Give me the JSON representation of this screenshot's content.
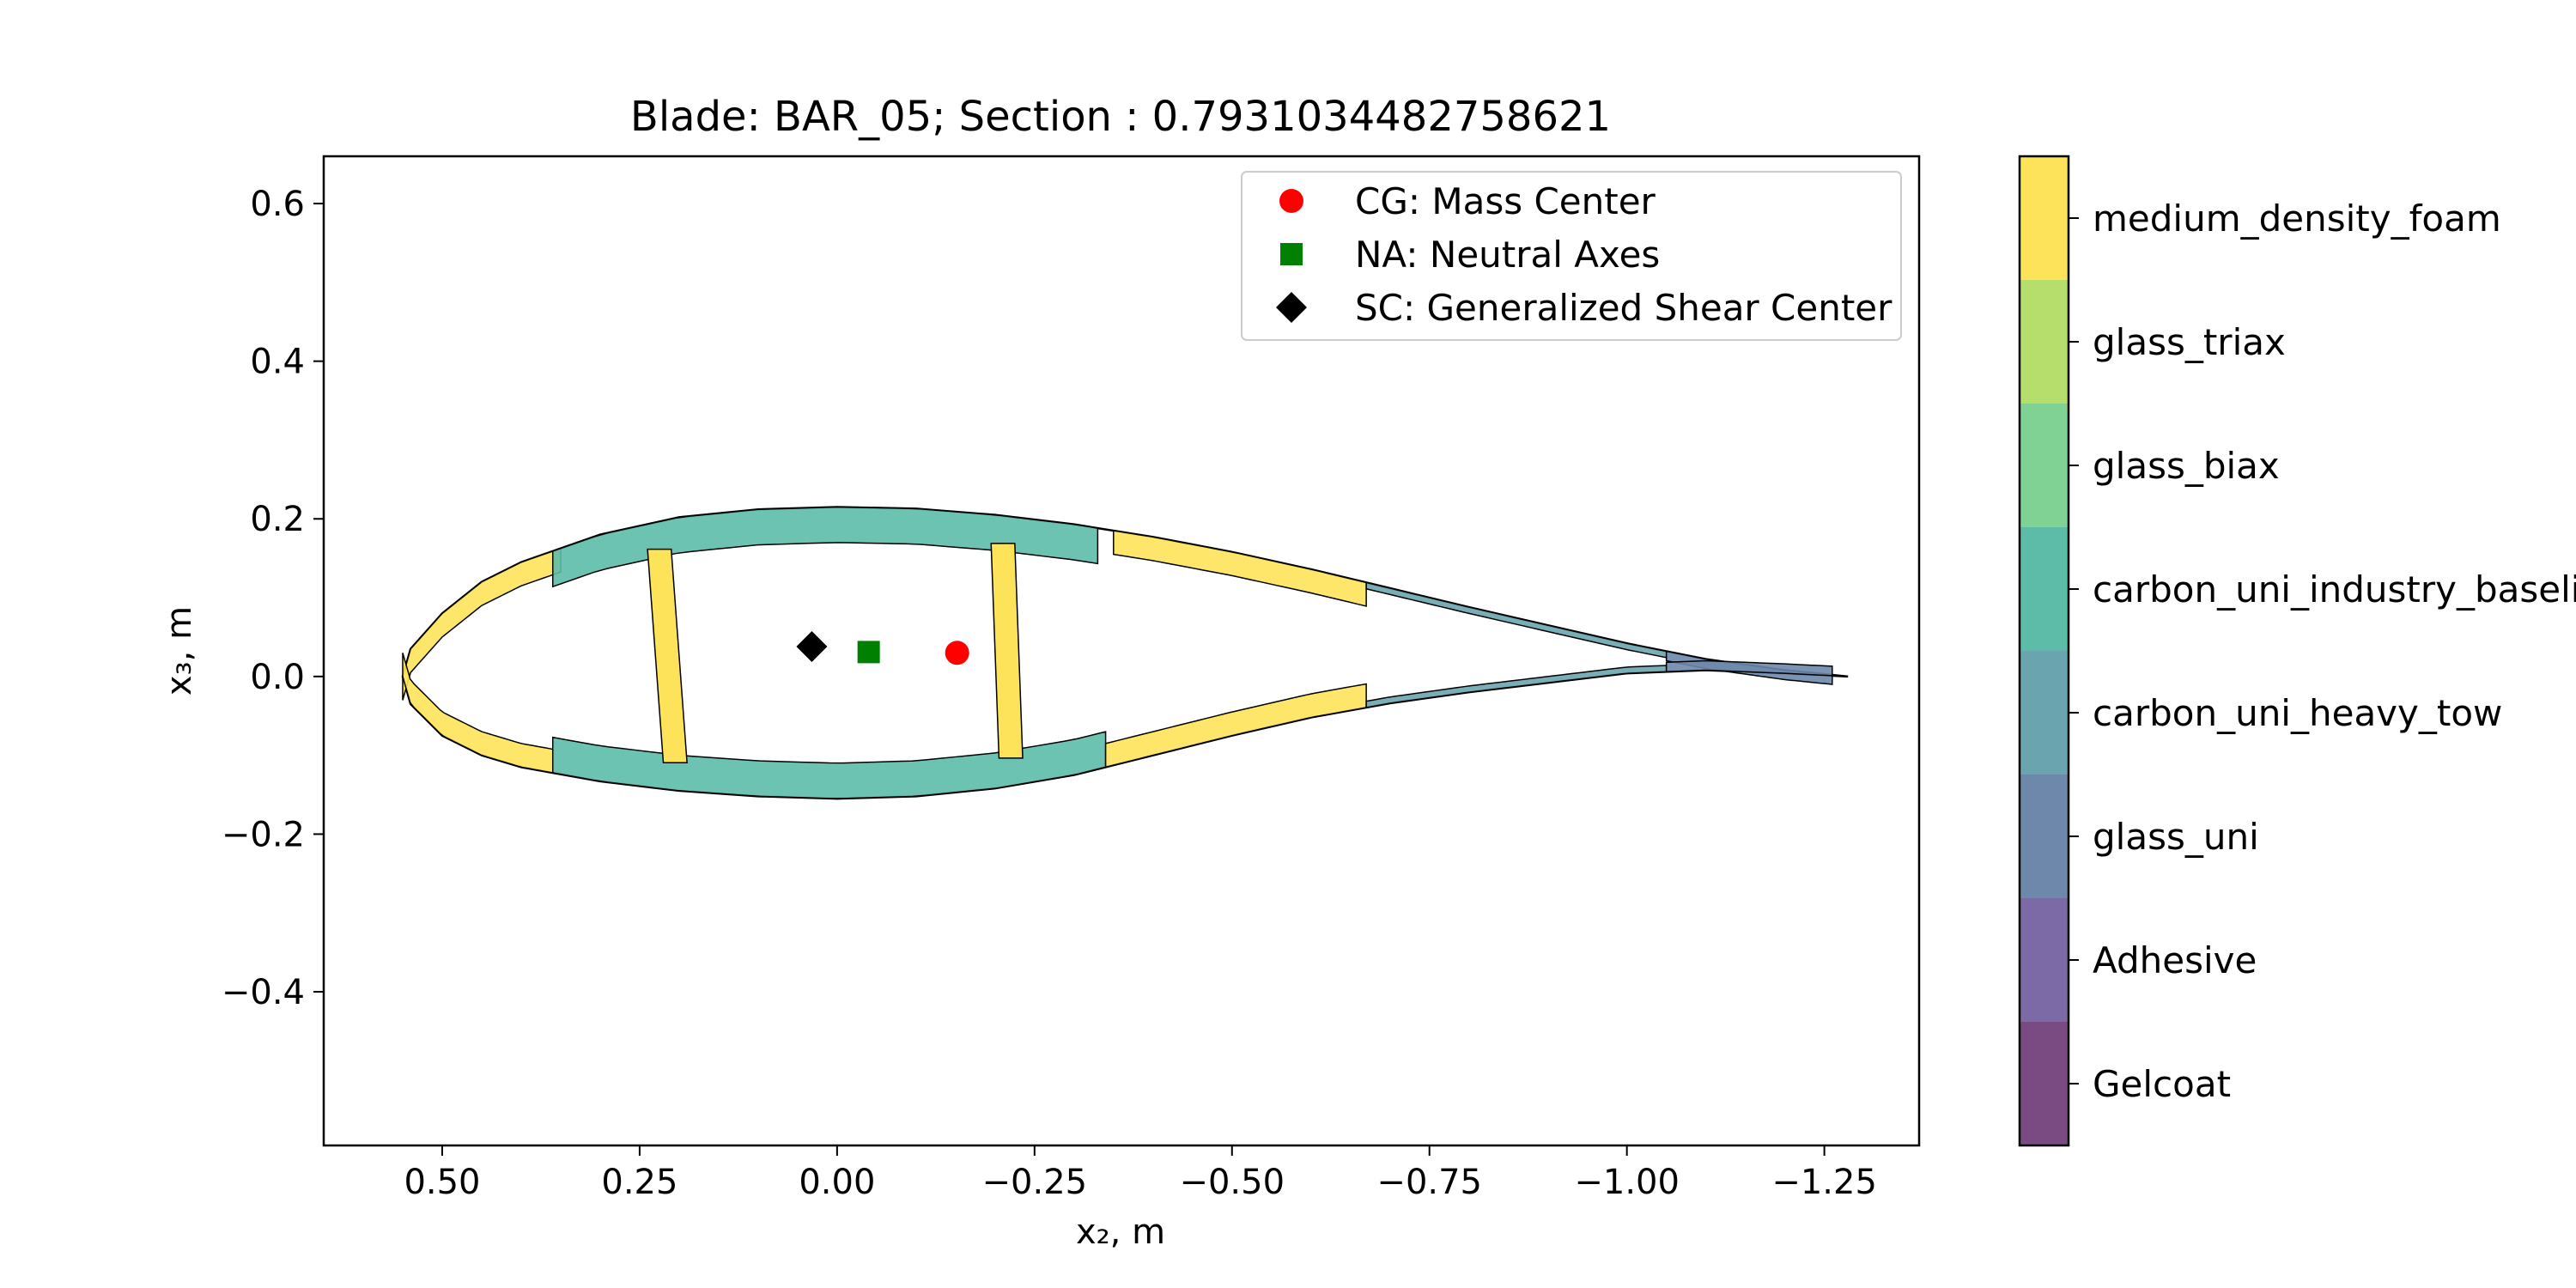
{
  "chart_data": {
    "type": "scatter",
    "title": "Blade: BAR_05; Section : 0.7931034482758621",
    "xlabel": "x₂, m",
    "ylabel": "x₃, m",
    "xlim": [
      0.65,
      -1.37
    ],
    "ylim": [
      -0.595,
      0.66
    ],
    "x_ticks": [
      0.5,
      0.25,
      0.0,
      -0.25,
      -0.5,
      -0.75,
      -1.0,
      -1.25
    ],
    "x_tick_labels": [
      "0.50",
      "0.25",
      "0.00",
      "−0.25",
      "−0.50",
      "−0.75",
      "−1.00",
      "−1.25"
    ],
    "y_ticks": [
      0.6,
      0.4,
      0.2,
      0.0,
      -0.2,
      -0.4
    ],
    "y_tick_labels": [
      "0.6",
      "0.4",
      "0.2",
      "0.0",
      "−0.2",
      "−0.4"
    ],
    "legend_position": "upper-right",
    "points": [
      {
        "name": "CG: Mass Center",
        "x": -0.152,
        "y": 0.03,
        "marker": "circle",
        "color": "#ff0000"
      },
      {
        "name": "NA: Neutral Axes",
        "x": -0.04,
        "y": 0.031,
        "marker": "square",
        "color": "#008000"
      },
      {
        "name": "SC: Generalized Shear Center",
        "x": 0.032,
        "y": 0.038,
        "marker": "diamond",
        "color": "#000000"
      }
    ],
    "airfoil": {
      "leading_edge_x": 0.55,
      "trailing_edge_x": -1.28,
      "upper": [
        [
          0.55,
          0.0
        ],
        [
          0.54,
          0.035
        ],
        [
          0.5,
          0.08
        ],
        [
          0.45,
          0.12
        ],
        [
          0.4,
          0.145
        ],
        [
          0.3,
          0.18
        ],
        [
          0.2,
          0.202
        ],
        [
          0.1,
          0.212
        ],
        [
          0.0,
          0.215
        ],
        [
          -0.1,
          0.213
        ],
        [
          -0.2,
          0.205
        ],
        [
          -0.3,
          0.193
        ],
        [
          -0.4,
          0.177
        ],
        [
          -0.5,
          0.158
        ],
        [
          -0.6,
          0.136
        ],
        [
          -0.7,
          0.112
        ],
        [
          -0.8,
          0.088
        ],
        [
          -0.9,
          0.065
        ],
        [
          -1.0,
          0.042
        ],
        [
          -1.1,
          0.022
        ],
        [
          -1.2,
          0.008
        ],
        [
          -1.28,
          0.0
        ]
      ],
      "lower": [
        [
          0.55,
          0.0
        ],
        [
          0.54,
          -0.035
        ],
        [
          0.5,
          -0.075
        ],
        [
          0.45,
          -0.1
        ],
        [
          0.4,
          -0.115
        ],
        [
          0.3,
          -0.133
        ],
        [
          0.2,
          -0.145
        ],
        [
          0.1,
          -0.152
        ],
        [
          0.0,
          -0.155
        ],
        [
          -0.1,
          -0.152
        ],
        [
          -0.2,
          -0.142
        ],
        [
          -0.3,
          -0.125
        ],
        [
          -0.4,
          -0.1
        ],
        [
          -0.5,
          -0.075
        ],
        [
          -0.6,
          -0.052
        ],
        [
          -0.7,
          -0.034
        ],
        [
          -0.8,
          -0.02
        ],
        [
          -0.9,
          -0.008
        ],
        [
          -1.0,
          0.004
        ],
        [
          -1.1,
          0.008
        ],
        [
          -1.2,
          0.004
        ],
        [
          -1.28,
          0.0
        ]
      ]
    },
    "regions": [
      {
        "material": "medium_density_foam",
        "surface": "upper",
        "from": 0.55,
        "to": 0.35,
        "thickness": 0.03
      },
      {
        "material": "medium_density_foam",
        "surface": "lower",
        "from": 0.55,
        "to": 0.36,
        "thickness": 0.03
      },
      {
        "material": "carbon_uni_industry_baseline",
        "surface": "upper",
        "from": 0.36,
        "to": -0.33,
        "thickness": 0.045
      },
      {
        "material": "carbon_uni_industry_baseline",
        "surface": "lower",
        "from": 0.36,
        "to": -0.34,
        "thickness": 0.045
      },
      {
        "material": "medium_density_foam",
        "surface": "upper",
        "from": -0.35,
        "to": -0.67,
        "thickness": 0.03
      },
      {
        "material": "medium_density_foam",
        "surface": "lower",
        "from": -0.34,
        "to": -0.67,
        "thickness": 0.03
      },
      {
        "material": "carbon_uni_heavy_tow",
        "surface": "upper",
        "from": -0.67,
        "to": -1.05,
        "thickness": 0.008
      },
      {
        "material": "carbon_uni_heavy_tow",
        "surface": "lower",
        "from": -0.67,
        "to": -1.05,
        "thickness": 0.008
      },
      {
        "material": "glass_uni",
        "surface": "upper",
        "from": -1.05,
        "to": -1.26,
        "thickness": 0.012
      },
      {
        "material": "glass_uni",
        "surface": "lower",
        "from": -1.05,
        "to": -1.26,
        "thickness": 0.012
      }
    ],
    "webs": [
      {
        "material": "medium_density_foam",
        "x_top": 0.225,
        "x_bottom": 0.205,
        "width": 0.03
      },
      {
        "material": "medium_density_foam",
        "x_top": -0.21,
        "x_bottom": -0.22,
        "width": 0.03
      }
    ],
    "colorbar": {
      "labels": [
        "medium_density_foam",
        "glass_triax",
        "glass_biax",
        "carbon_uni_industry_baseline",
        "carbon_uni_heavy_tow",
        "glass_uni",
        "Adhesive",
        "Gelcoat"
      ],
      "colors": [
        "#fde35a",
        "#b5de6c",
        "#7fd293",
        "#5cbca8",
        "#6aa5af",
        "#6d88ab",
        "#7b6aa6",
        "#7a4a82"
      ]
    }
  }
}
